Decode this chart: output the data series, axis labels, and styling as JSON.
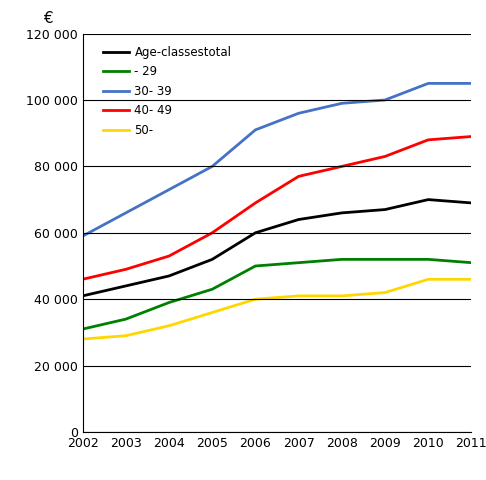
{
  "years": [
    2002,
    2003,
    2004,
    2005,
    2006,
    2007,
    2008,
    2009,
    2010,
    2011
  ],
  "series": {
    "Age-classestotal": {
      "color": "#000000",
      "values": [
        41000,
        44000,
        47000,
        52000,
        60000,
        64000,
        66000,
        67000,
        70000,
        69000
      ]
    },
    "- 29": {
      "color": "#008000",
      "values": [
        31000,
        34000,
        39000,
        43000,
        50000,
        51000,
        52000,
        52000,
        52000,
        51000
      ]
    },
    "30- 39": {
      "color": "#4472C4",
      "values": [
        59000,
        66000,
        73000,
        80000,
        91000,
        96000,
        99000,
        100000,
        105000,
        105000
      ]
    },
    "40- 49": {
      "color": "#FF0000",
      "values": [
        46000,
        49000,
        53000,
        60000,
        69000,
        77000,
        80000,
        83000,
        88000,
        89000
      ]
    },
    "50-": {
      "color": "#FFD700",
      "values": [
        28000,
        29000,
        32000,
        36000,
        40000,
        41000,
        41000,
        42000,
        46000,
        46000
      ]
    }
  },
  "ylim": [
    0,
    120000
  ],
  "yticks": [
    0,
    20000,
    40000,
    60000,
    80000,
    100000,
    120000
  ],
  "ytick_labels": [
    "0",
    "20 000",
    "40 000",
    "60 000",
    "80 000",
    "100 000",
    "120 000"
  ],
  "xlabel": "",
  "ylabel": "€",
  "title": "",
  "background_color": "#ffffff",
  "grid_color": "#000000",
  "legend_labels_order": [
    "Age-classestotal",
    "- 29",
    "30- 39",
    "40- 49",
    "50-"
  ]
}
